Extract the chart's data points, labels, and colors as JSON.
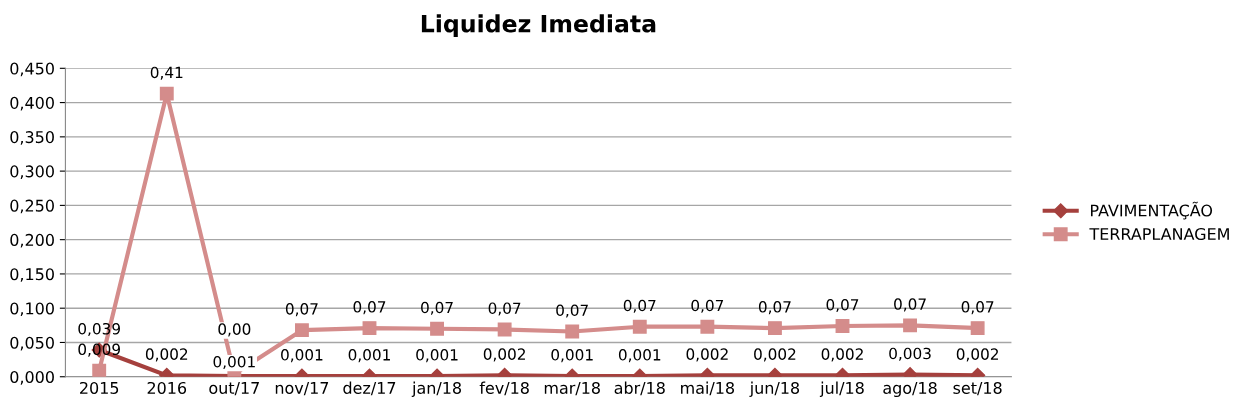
{
  "chart_data": {
    "type": "line",
    "title": "Liquidez Imediata",
    "categories": [
      "2015",
      "2016",
      "out/17",
      "nov/17",
      "dez/17",
      "jan/18",
      "fev/18",
      "mar/18",
      "abr/18",
      "mai/18",
      "jun/18",
      "jul/18",
      "ago/18",
      "set/18"
    ],
    "series": [
      {
        "name": "PAVIMENTAÇÃO",
        "color": "#a5403d",
        "marker": "diamond",
        "values": [
          0.039,
          0.002,
          0.001,
          0.001,
          0.001,
          0.001,
          0.002,
          0.001,
          0.001,
          0.002,
          0.002,
          0.002,
          0.003,
          0.002
        ],
        "value_labels": [
          "0,039",
          "0,002",
          "0,001",
          "0,001",
          "0,001",
          "0,001",
          "0,002",
          "0,001",
          "0,001",
          "0,002",
          "0,002",
          "0,002",
          "0,003",
          "0,002"
        ]
      },
      {
        "name": "TERRAPLANAGEM",
        "color": "#d48c8b",
        "marker": "square",
        "values": [
          0.009,
          0.413,
          0.004,
          0.068,
          0.071,
          0.07,
          0.069,
          0.066,
          0.073,
          0.073,
          0.071,
          0.074,
          0.075,
          0.071
        ],
        "value_labels": [
          "0,009",
          "0,41",
          "0,00",
          "0,07",
          "0,07",
          "0,07",
          "0,07",
          "0,07",
          "0,07",
          "0,07",
          "0,07",
          "0,07",
          "0,07",
          "0,07"
        ]
      }
    ],
    "ylim": [
      0,
      0.45
    ],
    "yticks": [
      {
        "value": 0,
        "label": "0,000"
      },
      {
        "value": 0.05,
        "label": "0,050"
      },
      {
        "value": 0.1,
        "label": "0,100"
      },
      {
        "value": 0.15,
        "label": "0,150"
      },
      {
        "value": 0.2,
        "label": "0,200"
      },
      {
        "value": 0.25,
        "label": "0,250"
      },
      {
        "value": 0.3,
        "label": "0,300"
      },
      {
        "value": 0.35,
        "label": "0,350"
      },
      {
        "value": 0.4,
        "label": "0,400"
      },
      {
        "value": 0.45,
        "label": "0,450"
      }
    ],
    "grid": "y",
    "legend": "right",
    "line_style": "solid"
  }
}
